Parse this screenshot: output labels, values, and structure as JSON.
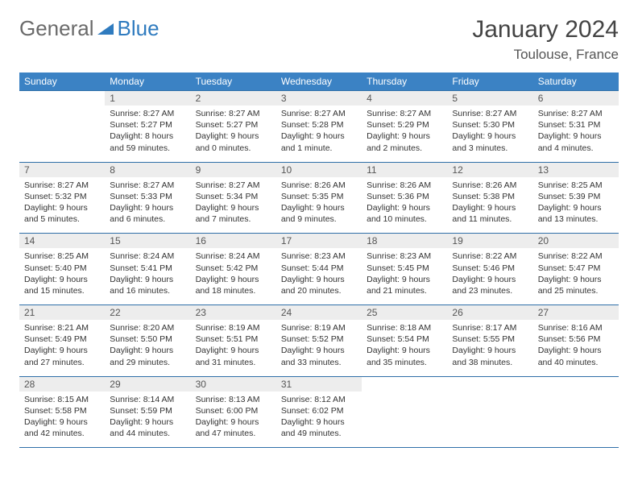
{
  "brand": {
    "part1": "General",
    "part2": "Blue"
  },
  "title": "January 2024",
  "location": "Toulouse, France",
  "colors": {
    "header_bg": "#3b82c4",
    "header_text": "#ffffff",
    "border": "#2f6fa8",
    "daynum_bg": "#ededed",
    "body_bg": "#ffffff"
  },
  "weekdays": [
    "Sunday",
    "Monday",
    "Tuesday",
    "Wednesday",
    "Thursday",
    "Friday",
    "Saturday"
  ],
  "weeks": [
    [
      {
        "empty": true
      },
      {
        "n": "1",
        "sunrise": "Sunrise: 8:27 AM",
        "sunset": "Sunset: 5:27 PM",
        "day1": "Daylight: 8 hours",
        "day2": "and 59 minutes."
      },
      {
        "n": "2",
        "sunrise": "Sunrise: 8:27 AM",
        "sunset": "Sunset: 5:27 PM",
        "day1": "Daylight: 9 hours",
        "day2": "and 0 minutes."
      },
      {
        "n": "3",
        "sunrise": "Sunrise: 8:27 AM",
        "sunset": "Sunset: 5:28 PM",
        "day1": "Daylight: 9 hours",
        "day2": "and 1 minute."
      },
      {
        "n": "4",
        "sunrise": "Sunrise: 8:27 AM",
        "sunset": "Sunset: 5:29 PM",
        "day1": "Daylight: 9 hours",
        "day2": "and 2 minutes."
      },
      {
        "n": "5",
        "sunrise": "Sunrise: 8:27 AM",
        "sunset": "Sunset: 5:30 PM",
        "day1": "Daylight: 9 hours",
        "day2": "and 3 minutes."
      },
      {
        "n": "6",
        "sunrise": "Sunrise: 8:27 AM",
        "sunset": "Sunset: 5:31 PM",
        "day1": "Daylight: 9 hours",
        "day2": "and 4 minutes."
      }
    ],
    [
      {
        "n": "7",
        "sunrise": "Sunrise: 8:27 AM",
        "sunset": "Sunset: 5:32 PM",
        "day1": "Daylight: 9 hours",
        "day2": "and 5 minutes."
      },
      {
        "n": "8",
        "sunrise": "Sunrise: 8:27 AM",
        "sunset": "Sunset: 5:33 PM",
        "day1": "Daylight: 9 hours",
        "day2": "and 6 minutes."
      },
      {
        "n": "9",
        "sunrise": "Sunrise: 8:27 AM",
        "sunset": "Sunset: 5:34 PM",
        "day1": "Daylight: 9 hours",
        "day2": "and 7 minutes."
      },
      {
        "n": "10",
        "sunrise": "Sunrise: 8:26 AM",
        "sunset": "Sunset: 5:35 PM",
        "day1": "Daylight: 9 hours",
        "day2": "and 9 minutes."
      },
      {
        "n": "11",
        "sunrise": "Sunrise: 8:26 AM",
        "sunset": "Sunset: 5:36 PM",
        "day1": "Daylight: 9 hours",
        "day2": "and 10 minutes."
      },
      {
        "n": "12",
        "sunrise": "Sunrise: 8:26 AM",
        "sunset": "Sunset: 5:38 PM",
        "day1": "Daylight: 9 hours",
        "day2": "and 11 minutes."
      },
      {
        "n": "13",
        "sunrise": "Sunrise: 8:25 AM",
        "sunset": "Sunset: 5:39 PM",
        "day1": "Daylight: 9 hours",
        "day2": "and 13 minutes."
      }
    ],
    [
      {
        "n": "14",
        "sunrise": "Sunrise: 8:25 AM",
        "sunset": "Sunset: 5:40 PM",
        "day1": "Daylight: 9 hours",
        "day2": "and 15 minutes."
      },
      {
        "n": "15",
        "sunrise": "Sunrise: 8:24 AM",
        "sunset": "Sunset: 5:41 PM",
        "day1": "Daylight: 9 hours",
        "day2": "and 16 minutes."
      },
      {
        "n": "16",
        "sunrise": "Sunrise: 8:24 AM",
        "sunset": "Sunset: 5:42 PM",
        "day1": "Daylight: 9 hours",
        "day2": "and 18 minutes."
      },
      {
        "n": "17",
        "sunrise": "Sunrise: 8:23 AM",
        "sunset": "Sunset: 5:44 PM",
        "day1": "Daylight: 9 hours",
        "day2": "and 20 minutes."
      },
      {
        "n": "18",
        "sunrise": "Sunrise: 8:23 AM",
        "sunset": "Sunset: 5:45 PM",
        "day1": "Daylight: 9 hours",
        "day2": "and 21 minutes."
      },
      {
        "n": "19",
        "sunrise": "Sunrise: 8:22 AM",
        "sunset": "Sunset: 5:46 PM",
        "day1": "Daylight: 9 hours",
        "day2": "and 23 minutes."
      },
      {
        "n": "20",
        "sunrise": "Sunrise: 8:22 AM",
        "sunset": "Sunset: 5:47 PM",
        "day1": "Daylight: 9 hours",
        "day2": "and 25 minutes."
      }
    ],
    [
      {
        "n": "21",
        "sunrise": "Sunrise: 8:21 AM",
        "sunset": "Sunset: 5:49 PM",
        "day1": "Daylight: 9 hours",
        "day2": "and 27 minutes."
      },
      {
        "n": "22",
        "sunrise": "Sunrise: 8:20 AM",
        "sunset": "Sunset: 5:50 PM",
        "day1": "Daylight: 9 hours",
        "day2": "and 29 minutes."
      },
      {
        "n": "23",
        "sunrise": "Sunrise: 8:19 AM",
        "sunset": "Sunset: 5:51 PM",
        "day1": "Daylight: 9 hours",
        "day2": "and 31 minutes."
      },
      {
        "n": "24",
        "sunrise": "Sunrise: 8:19 AM",
        "sunset": "Sunset: 5:52 PM",
        "day1": "Daylight: 9 hours",
        "day2": "and 33 minutes."
      },
      {
        "n": "25",
        "sunrise": "Sunrise: 8:18 AM",
        "sunset": "Sunset: 5:54 PM",
        "day1": "Daylight: 9 hours",
        "day2": "and 35 minutes."
      },
      {
        "n": "26",
        "sunrise": "Sunrise: 8:17 AM",
        "sunset": "Sunset: 5:55 PM",
        "day1": "Daylight: 9 hours",
        "day2": "and 38 minutes."
      },
      {
        "n": "27",
        "sunrise": "Sunrise: 8:16 AM",
        "sunset": "Sunset: 5:56 PM",
        "day1": "Daylight: 9 hours",
        "day2": "and 40 minutes."
      }
    ],
    [
      {
        "n": "28",
        "sunrise": "Sunrise: 8:15 AM",
        "sunset": "Sunset: 5:58 PM",
        "day1": "Daylight: 9 hours",
        "day2": "and 42 minutes."
      },
      {
        "n": "29",
        "sunrise": "Sunrise: 8:14 AM",
        "sunset": "Sunset: 5:59 PM",
        "day1": "Daylight: 9 hours",
        "day2": "and 44 minutes."
      },
      {
        "n": "30",
        "sunrise": "Sunrise: 8:13 AM",
        "sunset": "Sunset: 6:00 PM",
        "day1": "Daylight: 9 hours",
        "day2": "and 47 minutes."
      },
      {
        "n": "31",
        "sunrise": "Sunrise: 8:12 AM",
        "sunset": "Sunset: 6:02 PM",
        "day1": "Daylight: 9 hours",
        "day2": "and 49 minutes."
      },
      {
        "empty": true
      },
      {
        "empty": true
      },
      {
        "empty": true
      }
    ]
  ]
}
